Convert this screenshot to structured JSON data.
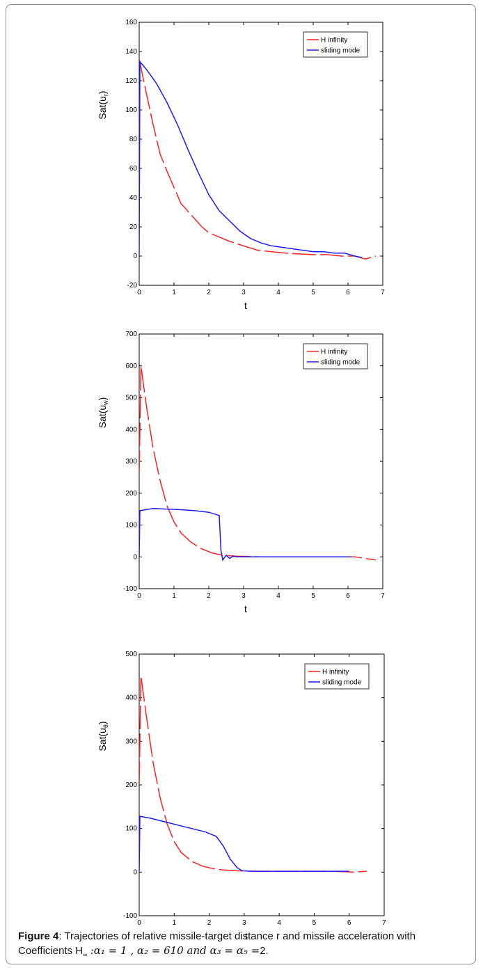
{
  "caption": {
    "label": "Figure 4",
    "text": ": Trajectories of relative missile-target distance r and missile acceleration with Coefficients H",
    "h_sub": "∞",
    "formula": ":α₁ = 1 , α₂ = 610 and α₃ = α₅ =",
    "formula_end": "2."
  },
  "chart_data": [
    {
      "type": "line",
      "xlabel": "t",
      "ylabel": "Sat(u",
      "ylabel_sub": "r",
      "ylabel_end": ")",
      "xlim": [
        0,
        7
      ],
      "ylim": [
        -20,
        160
      ],
      "xticks": [
        "0",
        "1",
        "2",
        "3",
        "4",
        "5",
        "6",
        "7"
      ],
      "yticks": [
        "-20",
        "0",
        "20",
        "40",
        "60",
        "80",
        "100",
        "120",
        "140",
        "160"
      ],
      "legend_position": "top-right",
      "series": [
        {
          "name": "H infinity",
          "color": "#ff2020",
          "dash": "dashed",
          "x": [
            0,
            0.2,
            0.4,
            0.6,
            0.8,
            1.0,
            1.2,
            1.5,
            1.8,
            2.0,
            2.3,
            2.6,
            3.0,
            3.4,
            3.8,
            4.2,
            4.6,
            5.0,
            5.4,
            5.8,
            6.2,
            6.5,
            6.8
          ],
          "y": [
            135,
            112,
            90,
            70,
            58,
            47,
            36,
            28,
            20,
            16,
            13,
            10,
            7,
            4,
            3,
            2,
            1.5,
            1,
            1,
            0,
            0,
            -2,
            0
          ]
        },
        {
          "name": "sliding mode",
          "color": "#1a1aff",
          "dash": "solid",
          "x": [
            0,
            0.02,
            0.2,
            0.5,
            0.8,
            1.1,
            1.4,
            1.7,
            2.0,
            2.3,
            2.6,
            2.9,
            3.2,
            3.5,
            3.8,
            4.1,
            4.4,
            4.7,
            5.0,
            5.3,
            5.6,
            5.9,
            6.2,
            6.4
          ],
          "y": [
            0,
            133,
            128,
            118,
            105,
            90,
            73,
            57,
            42,
            31,
            24,
            17,
            12,
            9,
            7,
            6,
            5,
            4,
            3,
            3,
            2,
            2,
            0,
            -1
          ]
        }
      ]
    },
    {
      "type": "line",
      "xlabel": "t",
      "ylabel": "Sat(u",
      "ylabel_sub": "w",
      "ylabel_end": ")",
      "xlim": [
        0,
        7
      ],
      "ylim": [
        -100,
        700
      ],
      "xticks": [
        "0",
        "1",
        "2",
        "3",
        "4",
        "5",
        "6",
        "7"
      ],
      "yticks": [
        "-100",
        "0",
        "100",
        "200",
        "300",
        "400",
        "500",
        "600",
        "700"
      ],
      "legend_position": "top-right",
      "series": [
        {
          "name": "H infinity",
          "color": "#ff2020",
          "dash": "dashed",
          "x": [
            0,
            0.05,
            0.2,
            0.4,
            0.6,
            0.8,
            1.0,
            1.2,
            1.5,
            1.8,
            2.1,
            2.4,
            2.8,
            3.5,
            4.5,
            5.5,
            6.2,
            6.8
          ],
          "y": [
            260,
            600,
            480,
            340,
            240,
            160,
            110,
            75,
            45,
            25,
            12,
            5,
            2,
            0,
            0,
            0,
            0,
            -10
          ]
        },
        {
          "name": "sliding mode",
          "color": "#1a1aff",
          "dash": "solid",
          "x": [
            0,
            0.02,
            0.4,
            0.8,
            1.2,
            1.6,
            2.0,
            2.3,
            2.35,
            2.4,
            2.5,
            2.6,
            2.7,
            2.8,
            3.5,
            4.5,
            5.5,
            6.1
          ],
          "y": [
            0,
            145,
            152,
            150,
            148,
            145,
            140,
            130,
            20,
            -10,
            5,
            -5,
            2,
            0,
            0,
            0,
            0,
            0
          ]
        }
      ]
    },
    {
      "type": "line",
      "xlabel": "t",
      "ylabel": "Sat(u",
      "ylabel_sub": "θ",
      "ylabel_end": ")",
      "xlim": [
        0,
        7
      ],
      "ylim": [
        -100,
        500
      ],
      "xticks": [
        "0",
        "1",
        "2",
        "3",
        "4",
        "5",
        "6",
        "7"
      ],
      "yticks": [
        "-100",
        "0",
        "100",
        "200",
        "300",
        "400",
        "500"
      ],
      "legend_position": "top-right",
      "series": [
        {
          "name": "H infinity",
          "color": "#ff2020",
          "dash": "dashed",
          "x": [
            0,
            0.05,
            0.2,
            0.4,
            0.6,
            0.8,
            1.0,
            1.2,
            1.5,
            1.8,
            2.1,
            2.4,
            2.8,
            3.5,
            4.5,
            5.5,
            6.1,
            6.5
          ],
          "y": [
            200,
            450,
            360,
            250,
            170,
            110,
            70,
            45,
            25,
            14,
            8,
            5,
            3,
            2,
            2,
            2,
            0,
            2
          ]
        },
        {
          "name": "sliding mode",
          "color": "#1a1aff",
          "dash": "solid",
          "x": [
            0,
            0.02,
            0.3,
            0.7,
            1.1,
            1.5,
            1.9,
            2.2,
            2.4,
            2.6,
            2.8,
            2.95,
            3.2,
            4.0,
            5.0,
            6.0
          ],
          "y": [
            0,
            128,
            124,
            116,
            108,
            100,
            92,
            82,
            60,
            30,
            10,
            3,
            2,
            2,
            2,
            2
          ]
        }
      ]
    }
  ]
}
